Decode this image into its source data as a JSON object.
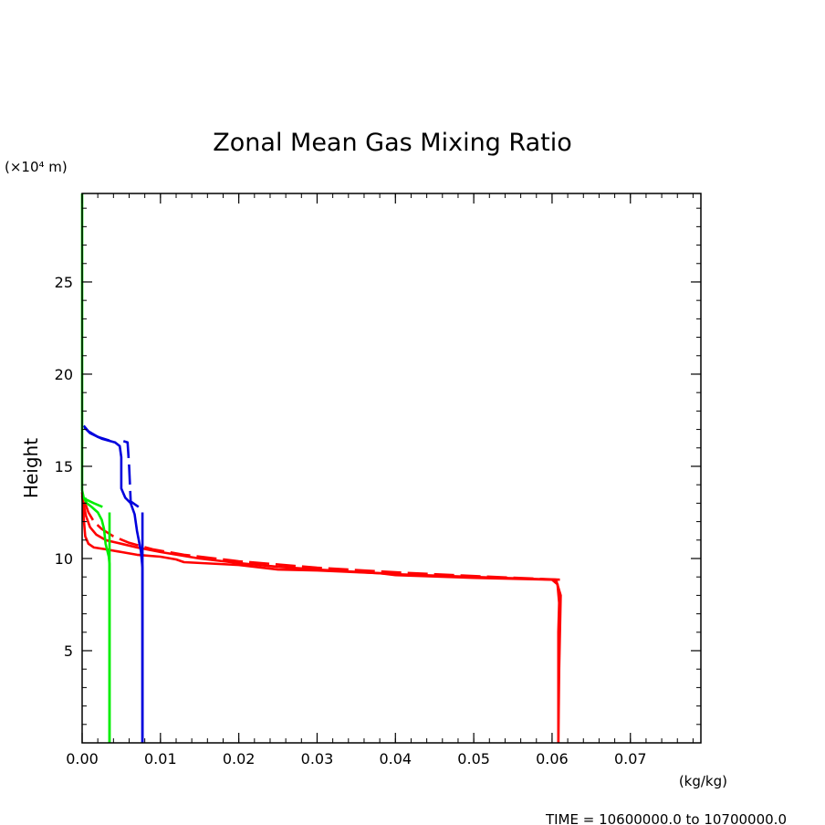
{
  "chart_data": {
    "type": "line",
    "title": "Zonal Mean Gas Mixing Ratio",
    "xlabel": "(kg/kg)",
    "ylabel": "Height",
    "y_unit": "(×10⁴ m)",
    "footer": "TIME = 10600000.0 to 10700000.0",
    "xlim": [
      0,
      0.079
    ],
    "ylim": [
      0,
      29.8
    ],
    "xticks": [
      {
        "value": 0,
        "label": "0.00"
      },
      {
        "value": 0.01,
        "label": "0.01"
      },
      {
        "value": 0.02,
        "label": "0.02"
      },
      {
        "value": 0.03,
        "label": "0.03"
      },
      {
        "value": 0.04,
        "label": "0.04"
      },
      {
        "value": 0.05,
        "label": "0.05"
      },
      {
        "value": 0.06,
        "label": "0.06"
      },
      {
        "value": 0.07,
        "label": "0.07"
      }
    ],
    "yticks": [
      {
        "value": 5,
        "label": "5"
      },
      {
        "value": 10,
        "label": "10"
      },
      {
        "value": 15,
        "label": "15"
      },
      {
        "value": 20,
        "label": "20"
      },
      {
        "value": 25,
        "label": "25"
      }
    ],
    "grid": false,
    "series": [
      {
        "color": "#ff0000",
        "dash": "solid",
        "points": [
          [
            0.0608,
            0
          ],
          [
            0.0608,
            6
          ],
          [
            0.0609,
            7.6
          ],
          [
            0.0607,
            8.6
          ],
          [
            0.06,
            8.85
          ],
          [
            0.05,
            8.95
          ],
          [
            0.04,
            9.1
          ],
          [
            0.038,
            9.2
          ],
          [
            0.03,
            9.35
          ],
          [
            0.025,
            9.4
          ],
          [
            0.02,
            9.65
          ],
          [
            0.013,
            9.8
          ],
          [
            0.012,
            9.95
          ],
          [
            0.01,
            10.1
          ],
          [
            0.007,
            10.2
          ],
          [
            0.005,
            10.35
          ],
          [
            0.003,
            10.5
          ],
          [
            0.0015,
            10.6
          ],
          [
            0.0008,
            10.8
          ],
          [
            0.0004,
            11.2
          ],
          [
            0.0002,
            12.2
          ],
          [
            0.0001,
            13
          ],
          [
            0,
            13.6
          ]
        ]
      },
      {
        "color": "#ff0000",
        "dash": "solid",
        "points": [
          [
            0.0608,
            0
          ],
          [
            0.0609,
            4
          ],
          [
            0.0611,
            8
          ],
          [
            0.0605,
            8.85
          ],
          [
            0.05,
            9.0
          ],
          [
            0.04,
            9.15
          ],
          [
            0.03,
            9.4
          ],
          [
            0.025,
            9.55
          ],
          [
            0.02,
            9.75
          ],
          [
            0.015,
            10.0
          ],
          [
            0.01,
            10.35
          ],
          [
            0.007,
            10.6
          ],
          [
            0.005,
            10.8
          ],
          [
            0.003,
            11.0
          ],
          [
            0.0018,
            11.3
          ],
          [
            0.001,
            11.7
          ],
          [
            0.0005,
            12.3
          ],
          [
            0.0002,
            12.9
          ],
          [
            0,
            13.4
          ]
        ]
      },
      {
        "color": "#ff0000",
        "dash": "dashed",
        "points": [
          [
            0.061,
            8.85
          ],
          [
            0.05,
            9.05
          ],
          [
            0.04,
            9.25
          ],
          [
            0.03,
            9.5
          ],
          [
            0.02,
            9.85
          ],
          [
            0.013,
            10.2
          ],
          [
            0.009,
            10.5
          ],
          [
            0.006,
            10.85
          ],
          [
            0.004,
            11.2
          ],
          [
            0.0025,
            11.6
          ],
          [
            0.0015,
            12.0
          ],
          [
            0.0008,
            12.5
          ],
          [
            0.0003,
            13.1
          ],
          [
            0,
            13.6
          ]
        ]
      },
      {
        "color": "#0000dd",
        "dash": "solid",
        "points": [
          [
            0.0077,
            0
          ],
          [
            0.0077,
            9.5
          ],
          [
            0.0075,
            10.4
          ],
          [
            0.007,
            11.5
          ],
          [
            0.0067,
            12.4
          ],
          [
            0.0062,
            13.0
          ],
          [
            0.0055,
            13.3
          ],
          [
            0.005,
            13.8
          ],
          [
            0.005,
            15.5
          ],
          [
            0.0048,
            16.1
          ],
          [
            0.0042,
            16.3
          ],
          [
            0.0025,
            16.5
          ],
          [
            0.001,
            16.8
          ],
          [
            0.0003,
            17.1
          ]
        ]
      },
      {
        "color": "#0000dd",
        "dash": "solid",
        "points": [
          [
            0.0077,
            0
          ],
          [
            0.0077,
            12.5
          ]
        ]
      },
      {
        "color": "#0000dd",
        "dash": "solid",
        "points": [
          [
            0.0035,
            16.4
          ],
          [
            0.002,
            16.6
          ],
          [
            0.0008,
            16.9
          ],
          [
            0.0002,
            17.2
          ]
        ]
      },
      {
        "color": "#0000dd",
        "dash": "dashed",
        "points": [
          [
            0.0072,
            12.8
          ],
          [
            0.0062,
            13.1
          ],
          [
            0.006,
            15.0
          ],
          [
            0.0058,
            16.3
          ],
          [
            0.005,
            16.4
          ]
        ]
      },
      {
        "color": "#00ee00",
        "dash": "solid",
        "points": [
          [
            0.0035,
            0
          ],
          [
            0.0035,
            9.7
          ],
          [
            0.0034,
            10.1
          ],
          [
            0.003,
            10.8
          ],
          [
            0.0028,
            11.6
          ],
          [
            0.0025,
            12.1
          ],
          [
            0.002,
            12.5
          ],
          [
            0.0012,
            12.8
          ],
          [
            0.0006,
            13.0
          ],
          [
            0.0002,
            13.3
          ],
          [
            0,
            13.7
          ],
          [
            0,
            29.8
          ]
        ]
      },
      {
        "color": "#00ee00",
        "dash": "solid",
        "points": [
          [
            0.0035,
            0
          ],
          [
            0.0035,
            12.5
          ]
        ]
      },
      {
        "color": "#00ee00",
        "dash": "dashed",
        "points": [
          [
            0.0026,
            12.8
          ],
          [
            0.0015,
            13.0
          ],
          [
            0.0005,
            13.2
          ],
          [
            0,
            13.5
          ]
        ]
      }
    ]
  }
}
